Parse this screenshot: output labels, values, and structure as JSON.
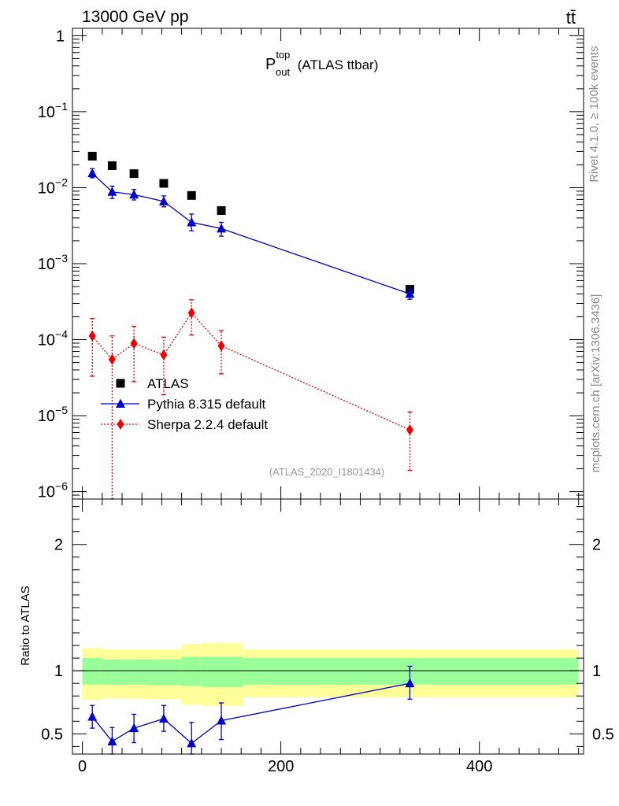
{
  "header": {
    "energy_label": "13000 GeV pp",
    "process_label": "tt̄",
    "rivet_label": "Rivet 4.1.0, ≥ 100k events",
    "mcplots_label": "mcplots.cern.ch [arXiv:1306.3436]"
  },
  "chart_data": [
    {
      "type": "scatter",
      "panel": "main",
      "title": "P_out^top (ATLAS ttbar)",
      "title_main": "P",
      "title_sup": "top",
      "title_sub": "out",
      "title_rest": " (ATLAS ttbar)",
      "analysis_id": "(ATLAS_2020_I1801434)",
      "xlabel": "",
      "ylabel": "",
      "yscale": "log",
      "xlim": [
        -10,
        505
      ],
      "ylim": [
        8e-07,
        1.25
      ],
      "ytick_labels": [
        {
          "value": 1,
          "base": "1",
          "exp": ""
        },
        {
          "value": 0.1,
          "base": "10",
          "exp": "−1"
        },
        {
          "value": 0.01,
          "base": "10",
          "exp": "−2"
        },
        {
          "value": 0.001,
          "base": "10",
          "exp": "−3"
        },
        {
          "value": 0.0001,
          "base": "10",
          "exp": "−4"
        },
        {
          "value": 1e-05,
          "base": "10",
          "exp": "−5"
        },
        {
          "value": 1e-06,
          "base": "10",
          "exp": "−6"
        }
      ],
      "legend_position": "lower-left",
      "series": [
        {
          "name": "ATLAS",
          "color": "#000000",
          "marker": "square",
          "line": "none",
          "points": [
            {
              "x": 10,
              "y": 0.026
            },
            {
              "x": 30,
              "y": 0.0195
            },
            {
              "x": 52,
              "y": 0.0153
            },
            {
              "x": 82,
              "y": 0.0114
            },
            {
              "x": 110,
              "y": 0.0079
            },
            {
              "x": 140,
              "y": 0.005
            },
            {
              "x": 330,
              "y": 0.00046
            }
          ]
        },
        {
          "name": "Pythia 8.315 default",
          "color": "#0000cc",
          "marker": "triangle",
          "line": "solid",
          "points": [
            {
              "x": 10,
              "y": 0.0155,
              "lo": 0.0135,
              "hi": 0.0178
            },
            {
              "x": 30,
              "y": 0.0088,
              "lo": 0.0072,
              "hi": 0.0105
            },
            {
              "x": 52,
              "y": 0.0081,
              "lo": 0.0069,
              "hi": 0.0095
            },
            {
              "x": 82,
              "y": 0.0066,
              "lo": 0.0056,
              "hi": 0.0078
            },
            {
              "x": 110,
              "y": 0.0035,
              "lo": 0.0027,
              "hi": 0.0045
            },
            {
              "x": 140,
              "y": 0.0029,
              "lo": 0.0023,
              "hi": 0.0035
            },
            {
              "x": 330,
              "y": 0.0004,
              "lo": 0.00034,
              "hi": 0.00046
            }
          ]
        },
        {
          "name": "Sherpa 2.2.4 default",
          "color": "#ee0000",
          "marker": "diamond",
          "line": "dotted",
          "points": [
            {
              "x": 10,
              "y": 0.000112,
              "lo": 3.3e-05,
              "hi": 0.00019
            },
            {
              "x": 30,
              "y": 5.5e-05,
              "lo": 8e-07,
              "hi": 0.000112
            },
            {
              "x": 52,
              "y": 8.9e-05,
              "lo": 2.8e-05,
              "hi": 0.00015
            },
            {
              "x": 82,
              "y": 6.3e-05,
              "lo": 1.88e-05,
              "hi": 0.000108
            },
            {
              "x": 110,
              "y": 0.000225,
              "lo": 0.000115,
              "hi": 0.000335
            },
            {
              "x": 140,
              "y": 8.3e-05,
              "lo": 3.55e-05,
              "hi": 0.000132
            },
            {
              "x": 330,
              "y": 6.5e-06,
              "lo": 1.9e-06,
              "hi": 1.12e-05
            }
          ]
        }
      ]
    },
    {
      "type": "scatter",
      "panel": "ratio",
      "xlabel": "",
      "ylabel": "Ratio to ATLAS",
      "xlim": [
        -10,
        505
      ],
      "ylim": [
        0.34,
        2.36
      ],
      "xticks": [
        0,
        200,
        400
      ],
      "ytick_labels": [
        {
          "value": 0.5,
          "text": "0.5"
        },
        {
          "value": 1,
          "text": "1"
        },
        {
          "value": 2,
          "text": "2"
        }
      ],
      "bands": [
        {
          "x0": 0,
          "x1": 20,
          "inner_lo": 0.89,
          "inner_hi": 1.1,
          "outer_lo": 0.77,
          "outer_hi": 1.18
        },
        {
          "x0": 20,
          "x1": 40,
          "inner_lo": 0.89,
          "inner_hi": 1.09,
          "outer_lo": 0.78,
          "outer_hi": 1.17
        },
        {
          "x0": 40,
          "x1": 65,
          "inner_lo": 0.89,
          "inner_hi": 1.09,
          "outer_lo": 0.78,
          "outer_hi": 1.17
        },
        {
          "x0": 65,
          "x1": 100,
          "inner_lo": 0.885,
          "inner_hi": 1.09,
          "outer_lo": 0.775,
          "outer_hi": 1.17
        },
        {
          "x0": 100,
          "x1": 120,
          "inner_lo": 0.88,
          "inner_hi": 1.11,
          "outer_lo": 0.73,
          "outer_hi": 1.21
        },
        {
          "x0": 120,
          "x1": 162,
          "inner_lo": 0.87,
          "inner_hi": 1.11,
          "outer_lo": 0.72,
          "outer_hi": 1.22
        },
        {
          "x0": 162,
          "x1": 500,
          "inner_lo": 0.89,
          "inner_hi": 1.1,
          "outer_lo": 0.79,
          "outer_hi": 1.17
        }
      ],
      "band_colors": {
        "inner": "#99ff99",
        "outer": "#ffff99"
      },
      "reference_line": 1,
      "series": [
        {
          "name": "Pythia 8.315 default",
          "color": "#0000cc",
          "marker": "triangle",
          "line": "solid",
          "points": [
            {
              "x": 10,
              "y": 0.635,
              "lo": 0.545,
              "hi": 0.725
            },
            {
              "x": 30,
              "y": 0.44,
              "lo": 0.34,
              "hi": 0.55
            },
            {
              "x": 52,
              "y": 0.545,
              "lo": 0.43,
              "hi": 0.655
            },
            {
              "x": 82,
              "y": 0.62,
              "lo": 0.52,
              "hi": 0.725
            },
            {
              "x": 110,
              "y": 0.425,
              "lo": 0.34,
              "hi": 0.59
            },
            {
              "x": 140,
              "y": 0.605,
              "lo": 0.455,
              "hi": 0.745
            },
            {
              "x": 330,
              "y": 0.9,
              "lo": 0.775,
              "hi": 1.035
            }
          ]
        }
      ]
    }
  ]
}
